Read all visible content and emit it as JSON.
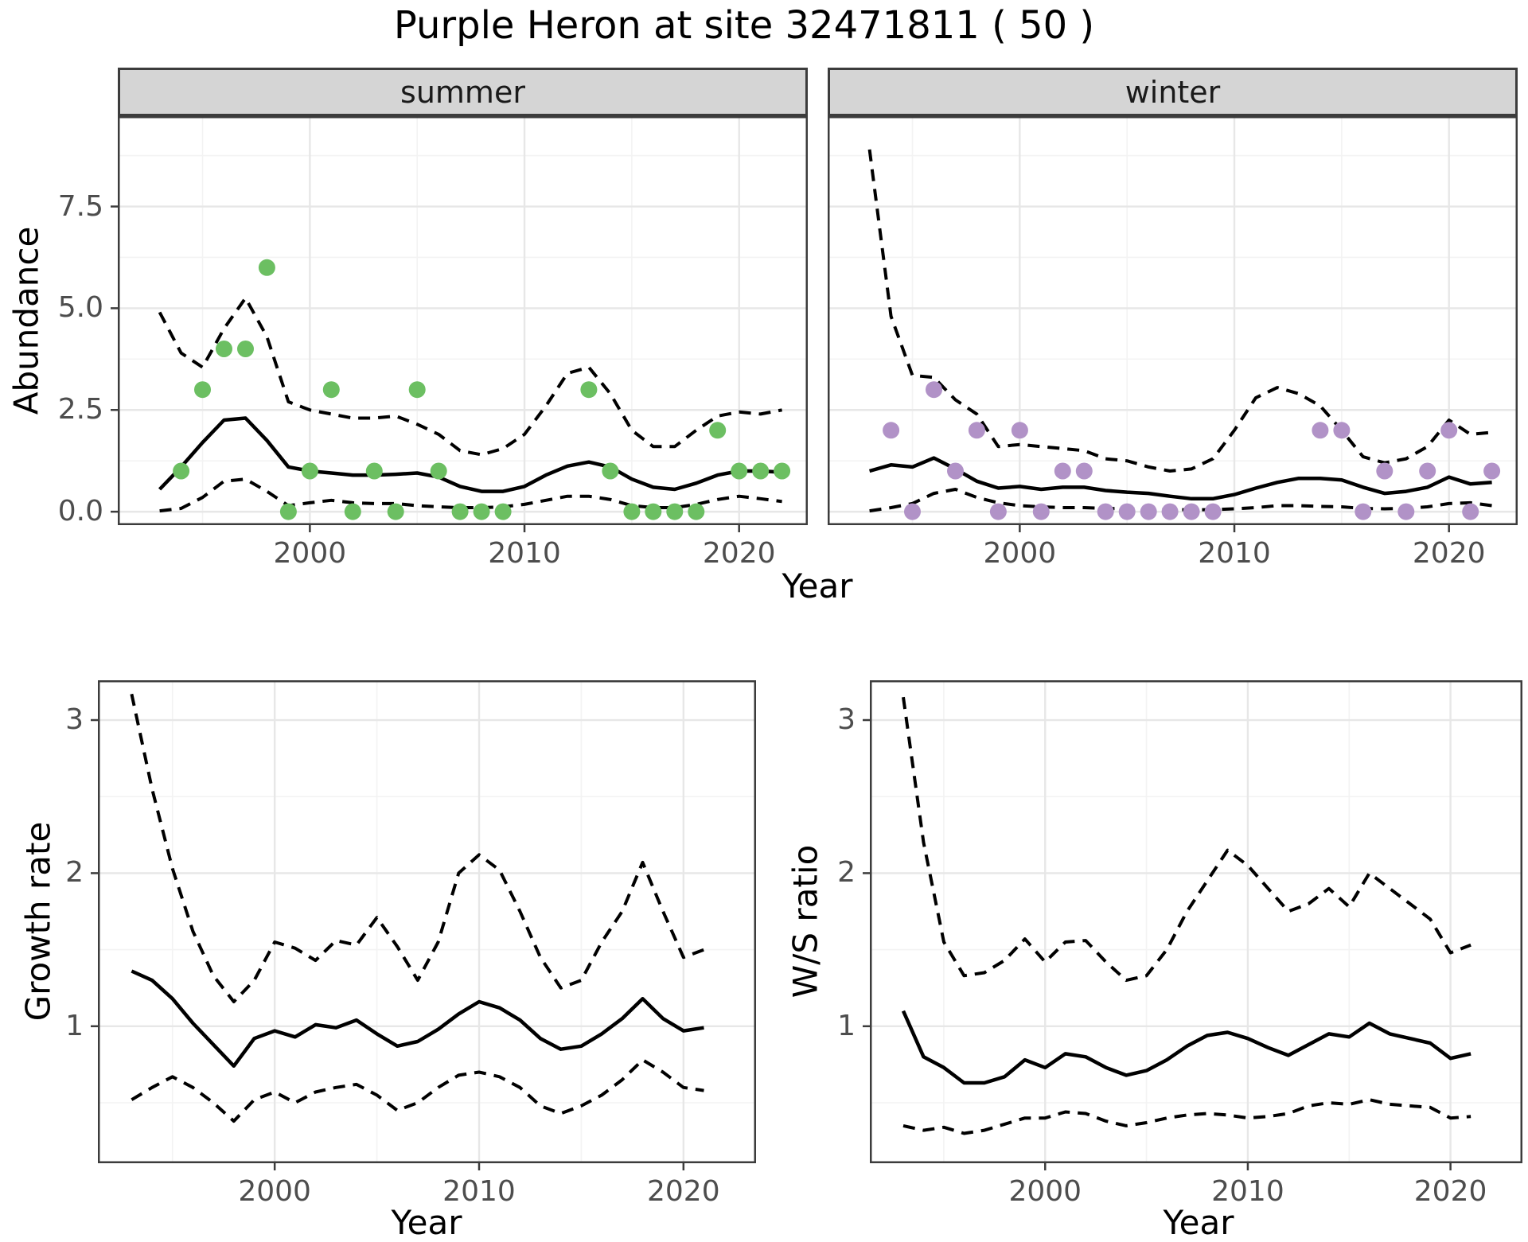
{
  "title": "Purple Heron at site 32471811 ( 50 )",
  "colors": {
    "summer_point": "#6cbf62",
    "winter_point": "#b192c7",
    "line": "#000000",
    "strip_bg": "#d5d5d5",
    "panel_border": "#3c3c3c",
    "grid_major": "#e7e7e7",
    "grid_minor": "#f3f3f3",
    "tick_text": "#4d4d4d"
  },
  "chart_data": [
    {
      "id": "abundance_summer",
      "type": "line",
      "facet_label": "summer",
      "ylabel": "Abundance",
      "xlabel": "Year",
      "xlim": [
        1991.05,
        2023.2
      ],
      "ylim": [
        -0.33,
        9.72
      ],
      "x_major_ticks": [
        2000,
        2010,
        2020
      ],
      "x_minor_ticks": [
        1995,
        2005,
        2015
      ],
      "x_tick_labels": [
        "2000",
        "2010",
        "2020"
      ],
      "y_major_ticks": [
        0.0,
        2.5,
        5.0,
        7.5
      ],
      "y_minor_ticks": [
        1.25,
        3.75,
        6.25,
        8.75
      ],
      "y_tick_labels": [
        "0.0",
        "2.5",
        "5.0",
        "7.5"
      ],
      "grid": "on",
      "points": {
        "years": [
          1994,
          1995,
          1996,
          1997,
          1998,
          1999,
          2000,
          2001,
          2002,
          2003,
          2004,
          2005,
          2006,
          2007,
          2008,
          2009,
          2013,
          2014,
          2015,
          2016,
          2017,
          2018,
          2019,
          2020,
          2021,
          2022
        ],
        "values": [
          1,
          3,
          4,
          4,
          6,
          0,
          1,
          3,
          0,
          1,
          0,
          3,
          1,
          0,
          0,
          0,
          3,
          1,
          0,
          0,
          0,
          0,
          2,
          1,
          1,
          1
        ]
      },
      "mean_line": {
        "years": [
          1993,
          1994,
          1995,
          1996,
          1997,
          1998,
          1999,
          2000,
          2001,
          2002,
          2003,
          2004,
          2005,
          2006,
          2007,
          2008,
          2009,
          2010,
          2011,
          2012,
          2013,
          2014,
          2015,
          2016,
          2017,
          2018,
          2019,
          2020,
          2021,
          2022
        ],
        "values": [
          0.55,
          1.1,
          1.7,
          2.25,
          2.3,
          1.75,
          1.1,
          1.0,
          0.95,
          0.9,
          0.9,
          0.92,
          0.95,
          0.85,
          0.62,
          0.5,
          0.5,
          0.62,
          0.9,
          1.12,
          1.22,
          1.1,
          0.8,
          0.6,
          0.55,
          0.7,
          0.9,
          1.0,
          1.0,
          0.97
        ]
      },
      "upper_ci": {
        "years": [
          1993,
          1994,
          1995,
          1996,
          1997,
          1998,
          1999,
          2000,
          2001,
          2002,
          2003,
          2004,
          2005,
          2006,
          2007,
          2008,
          2009,
          2010,
          2011,
          2012,
          2013,
          2014,
          2015,
          2016,
          2017,
          2018,
          2019,
          2020,
          2021,
          2022
        ],
        "values": [
          4.9,
          3.9,
          3.55,
          4.5,
          5.25,
          4.3,
          2.7,
          2.5,
          2.4,
          2.3,
          2.3,
          2.35,
          2.15,
          1.9,
          1.5,
          1.4,
          1.55,
          1.9,
          2.6,
          3.4,
          3.55,
          2.9,
          2.0,
          1.6,
          1.6,
          2.0,
          2.35,
          2.45,
          2.4,
          2.5
        ]
      },
      "lower_ci": {
        "years": [
          1993,
          1994,
          1995,
          1996,
          1997,
          1998,
          1999,
          2000,
          2001,
          2002,
          2003,
          2004,
          2005,
          2006,
          2007,
          2008,
          2009,
          2010,
          2011,
          2012,
          2013,
          2014,
          2015,
          2016,
          2017,
          2018,
          2019,
          2020,
          2021,
          2022
        ],
        "values": [
          0.02,
          0.08,
          0.35,
          0.75,
          0.8,
          0.5,
          0.15,
          0.22,
          0.28,
          0.22,
          0.2,
          0.2,
          0.15,
          0.12,
          0.1,
          0.1,
          0.12,
          0.18,
          0.28,
          0.38,
          0.38,
          0.3,
          0.15,
          0.1,
          0.1,
          0.18,
          0.3,
          0.38,
          0.32,
          0.25
        ]
      }
    },
    {
      "id": "abundance_winter",
      "type": "line",
      "facet_label": "winter",
      "ylabel": "Abundance",
      "xlabel": "Year",
      "xlim": [
        1991.05,
        2023.2
      ],
      "ylim": [
        -0.33,
        9.72
      ],
      "x_major_ticks": [
        2000,
        2010,
        2020
      ],
      "x_minor_ticks": [
        1995,
        2005,
        2015
      ],
      "x_tick_labels": [
        "2000",
        "2010",
        "2020"
      ],
      "y_major_ticks": [
        0.0,
        2.5,
        5.0,
        7.5
      ],
      "y_minor_ticks": [
        1.25,
        3.75,
        6.25,
        8.75
      ],
      "y_tick_labels": [],
      "grid": "on",
      "points": {
        "years": [
          1994,
          1995,
          1996,
          1997,
          1998,
          1999,
          2000,
          2001,
          2002,
          2003,
          2004,
          2005,
          2006,
          2007,
          2008,
          2009,
          2014,
          2015,
          2016,
          2017,
          2018,
          2019,
          2020,
          2021,
          2022
        ],
        "values": [
          2,
          0,
          3,
          1,
          2,
          0,
          2,
          0,
          1,
          1,
          0,
          0,
          0,
          0,
          0,
          0,
          2,
          2,
          0,
          1,
          0,
          1,
          2,
          0,
          1
        ]
      },
      "mean_line": {
        "years": [
          1993,
          1994,
          1995,
          1996,
          1997,
          1998,
          1999,
          2000,
          2001,
          2002,
          2003,
          2004,
          2005,
          2006,
          2007,
          2008,
          2009,
          2010,
          2011,
          2012,
          2013,
          2014,
          2015,
          2016,
          2017,
          2018,
          2019,
          2020,
          2021,
          2022
        ],
        "values": [
          1.0,
          1.15,
          1.1,
          1.32,
          1.05,
          0.75,
          0.58,
          0.62,
          0.55,
          0.6,
          0.6,
          0.52,
          0.48,
          0.45,
          0.38,
          0.32,
          0.32,
          0.42,
          0.58,
          0.72,
          0.82,
          0.82,
          0.78,
          0.6,
          0.45,
          0.5,
          0.6,
          0.85,
          0.68,
          0.72
        ]
      },
      "upper_ci": {
        "years": [
          1993,
          1994,
          1995,
          1996,
          1997,
          1998,
          1999,
          2000,
          2001,
          2002,
          2003,
          2004,
          2005,
          2006,
          2007,
          2008,
          2009,
          2010,
          2011,
          2012,
          2013,
          2014,
          2015,
          2016,
          2017,
          2018,
          2019,
          2020,
          2021,
          2022
        ],
        "values": [
          8.9,
          4.8,
          3.35,
          3.3,
          2.75,
          2.4,
          1.6,
          1.65,
          1.6,
          1.55,
          1.5,
          1.3,
          1.25,
          1.1,
          1.0,
          1.05,
          1.3,
          2.0,
          2.8,
          3.05,
          2.9,
          2.6,
          2.0,
          1.35,
          1.2,
          1.3,
          1.6,
          2.25,
          1.9,
          1.95
        ]
      },
      "lower_ci": {
        "years": [
          1993,
          1994,
          1995,
          1996,
          1997,
          1998,
          1999,
          2000,
          2001,
          2002,
          2003,
          2004,
          2005,
          2006,
          2007,
          2008,
          2009,
          2010,
          2011,
          2012,
          2013,
          2014,
          2015,
          2016,
          2017,
          2018,
          2019,
          2020,
          2021,
          2022
        ],
        "values": [
          0.02,
          0.1,
          0.2,
          0.45,
          0.55,
          0.35,
          0.22,
          0.15,
          0.12,
          0.1,
          0.1,
          0.08,
          0.07,
          0.06,
          0.05,
          0.05,
          0.05,
          0.07,
          0.1,
          0.15,
          0.15,
          0.13,
          0.12,
          0.08,
          0.07,
          0.08,
          0.12,
          0.2,
          0.22,
          0.15
        ]
      }
    },
    {
      "id": "growth_rate",
      "type": "line",
      "facet_label": "",
      "ylabel": "Growth rate",
      "xlabel": "Year",
      "xlim": [
        1991.35,
        2023.55
      ],
      "ylim": [
        0.105,
        3.26
      ],
      "x_major_ticks": [
        2000,
        2010,
        2020
      ],
      "x_minor_ticks": [
        1995,
        2005,
        2015
      ],
      "x_tick_labels": [
        "2000",
        "2010",
        "2020"
      ],
      "y_major_ticks": [
        1,
        2,
        3
      ],
      "y_minor_ticks": [
        0.5,
        1.5,
        2.5
      ],
      "y_tick_labels": [
        "1",
        "2",
        "3"
      ],
      "grid": "on",
      "points": {
        "years": [],
        "values": []
      },
      "mean_line": {
        "years": [
          1993,
          1994,
          1995,
          1996,
          1997,
          1998,
          1999,
          2000,
          2001,
          2002,
          2003,
          2004,
          2005,
          2006,
          2007,
          2008,
          2009,
          2010,
          2011,
          2012,
          2013,
          2014,
          2015,
          2016,
          2017,
          2018,
          2019,
          2020,
          2021
        ],
        "values": [
          1.36,
          1.3,
          1.18,
          1.02,
          0.88,
          0.74,
          0.92,
          0.97,
          0.93,
          1.01,
          0.99,
          1.04,
          0.95,
          0.87,
          0.9,
          0.98,
          1.08,
          1.16,
          1.12,
          1.04,
          0.92,
          0.85,
          0.87,
          0.95,
          1.05,
          1.18,
          1.05,
          0.97,
          0.99
        ]
      },
      "upper_ci": {
        "years": [
          1993,
          1994,
          1995,
          1996,
          1997,
          1998,
          1999,
          2000,
          2001,
          2002,
          2003,
          2004,
          2005,
          2006,
          2007,
          2008,
          2009,
          2010,
          2011,
          2012,
          2013,
          2014,
          2015,
          2016,
          2017,
          2018,
          2019,
          2020,
          2021
        ],
        "values": [
          3.17,
          2.55,
          2.03,
          1.62,
          1.33,
          1.16,
          1.3,
          1.55,
          1.51,
          1.43,
          1.56,
          1.53,
          1.71,
          1.52,
          1.3,
          1.55,
          2.0,
          2.12,
          2.02,
          1.75,
          1.45,
          1.25,
          1.3,
          1.55,
          1.75,
          2.07,
          1.75,
          1.45,
          1.5
        ]
      },
      "lower_ci": {
        "years": [
          1993,
          1994,
          1995,
          1996,
          1997,
          1998,
          1999,
          2000,
          2001,
          2002,
          2003,
          2004,
          2005,
          2006,
          2007,
          2008,
          2009,
          2010,
          2011,
          2012,
          2013,
          2014,
          2015,
          2016,
          2017,
          2018,
          2019,
          2020,
          2021
        ],
        "values": [
          0.52,
          0.6,
          0.67,
          0.6,
          0.5,
          0.38,
          0.52,
          0.57,
          0.5,
          0.57,
          0.6,
          0.62,
          0.55,
          0.45,
          0.5,
          0.6,
          0.68,
          0.7,
          0.67,
          0.6,
          0.48,
          0.43,
          0.48,
          0.55,
          0.65,
          0.78,
          0.7,
          0.6,
          0.58
        ]
      }
    },
    {
      "id": "ws_ratio",
      "type": "line",
      "facet_label": "",
      "ylabel": "W/S ratio",
      "xlabel": "Year",
      "xlim": [
        1991.35,
        2023.55
      ],
      "ylim": [
        0.105,
        3.26
      ],
      "x_major_ticks": [
        2000,
        2010,
        2020
      ],
      "x_minor_ticks": [
        1995,
        2005,
        2015
      ],
      "x_tick_labels": [
        "2000",
        "2010",
        "2020"
      ],
      "y_major_ticks": [
        1,
        2,
        3
      ],
      "y_minor_ticks": [
        0.5,
        1.5,
        2.5
      ],
      "y_tick_labels": [
        "1",
        "2",
        "3"
      ],
      "grid": "on",
      "points": {
        "years": [],
        "values": []
      },
      "mean_line": {
        "years": [
          1993,
          1994,
          1995,
          1996,
          1997,
          1998,
          1999,
          2000,
          2001,
          2002,
          2003,
          2004,
          2005,
          2006,
          2007,
          2008,
          2009,
          2010,
          2011,
          2012,
          2013,
          2014,
          2015,
          2016,
          2017,
          2018,
          2019,
          2020,
          2021
        ],
        "values": [
          1.1,
          0.8,
          0.73,
          0.63,
          0.63,
          0.67,
          0.78,
          0.73,
          0.82,
          0.8,
          0.73,
          0.68,
          0.71,
          0.78,
          0.87,
          0.94,
          0.96,
          0.92,
          0.86,
          0.81,
          0.88,
          0.95,
          0.93,
          1.02,
          0.95,
          0.92,
          0.89,
          0.79,
          0.82
        ]
      },
      "upper_ci": {
        "years": [
          1993,
          1994,
          1995,
          1996,
          1997,
          1998,
          1999,
          2000,
          2001,
          2002,
          2003,
          2004,
          2005,
          2006,
          2007,
          2008,
          2009,
          2010,
          2011,
          2012,
          2013,
          2014,
          2015,
          2016,
          2017,
          2018,
          2019,
          2020,
          2021
        ],
        "values": [
          3.15,
          2.2,
          1.55,
          1.33,
          1.35,
          1.43,
          1.57,
          1.42,
          1.55,
          1.56,
          1.42,
          1.3,
          1.33,
          1.5,
          1.75,
          1.95,
          2.15,
          2.05,
          1.9,
          1.75,
          1.8,
          1.9,
          1.78,
          2.0,
          1.9,
          1.8,
          1.7,
          1.48,
          1.53
        ]
      },
      "lower_ci": {
        "years": [
          1993,
          1994,
          1995,
          1996,
          1997,
          1998,
          1999,
          2000,
          2001,
          2002,
          2003,
          2004,
          2005,
          2006,
          2007,
          2008,
          2009,
          2010,
          2011,
          2012,
          2013,
          2014,
          2015,
          2016,
          2017,
          2018,
          2019,
          2020,
          2021
        ],
        "values": [
          0.35,
          0.32,
          0.34,
          0.3,
          0.32,
          0.36,
          0.4,
          0.4,
          0.44,
          0.43,
          0.38,
          0.35,
          0.37,
          0.4,
          0.42,
          0.43,
          0.42,
          0.4,
          0.41,
          0.43,
          0.48,
          0.5,
          0.49,
          0.52,
          0.49,
          0.48,
          0.47,
          0.4,
          0.41
        ]
      }
    }
  ]
}
